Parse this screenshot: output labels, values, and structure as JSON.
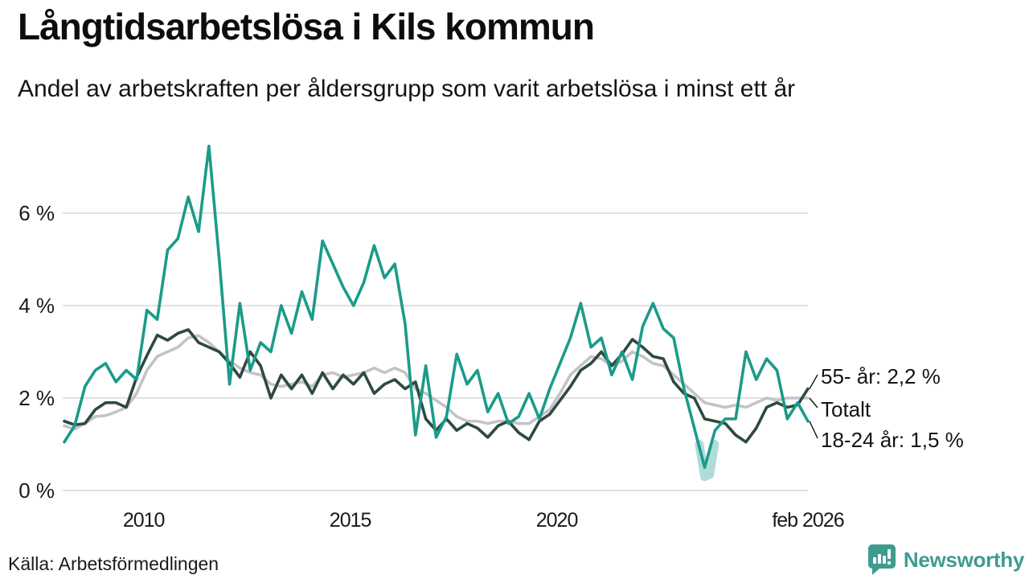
{
  "header": {
    "title": "Långtidsarbetslösa i Kils kommun",
    "subtitle": "Andel av arbetskraften per åldersgrupp som varit arbetslösa i minst ett år"
  },
  "footer": {
    "source": "Källa: Arbetsförmedlingen",
    "brand": "Newsworthy"
  },
  "colors": {
    "youth_line": "#1b9b8a",
    "senior_line": "#2d4a3f",
    "total_line": "#c4c2cb",
    "gridline": "#e2e2e2",
    "text": "#1a1a1a",
    "brand_teal": "#3f9b8f",
    "band": "rgba(27,155,138,0.35)"
  },
  "chart_data": {
    "type": "line",
    "title": "Långtidsarbetslösa i Kils kommun",
    "subtitle": "Andel av arbetskraften per åldersgrupp som varit arbetslösa i minst ett år",
    "unit": "%",
    "x_range": [
      2008.08,
      2026.08
    ],
    "x_step": 0.25,
    "ylim": [
      0,
      7.6
    ],
    "grid": true,
    "x_ticks": [
      {
        "t": 2010,
        "label": "2010"
      },
      {
        "t": 2015,
        "label": "2015"
      },
      {
        "t": 2020,
        "label": "2020"
      },
      {
        "t": 2026.08,
        "label": "feb 2026"
      }
    ],
    "y_ticks": [
      {
        "v": 0,
        "label": "0 %"
      },
      {
        "v": 2,
        "label": "2 %"
      },
      {
        "v": 4,
        "label": "4 %"
      },
      {
        "v": 6,
        "label": "6 %"
      }
    ],
    "series": [
      {
        "name": "Totalt",
        "color": "#c4c2cb",
        "last_value": 2.0,
        "values": [
          1.4,
          1.33,
          1.45,
          1.6,
          1.62,
          1.7,
          1.8,
          2.1,
          2.6,
          2.9,
          3.0,
          3.1,
          3.3,
          3.35,
          3.2,
          3.0,
          2.8,
          2.65,
          2.55,
          2.5,
          2.3,
          2.25,
          2.3,
          2.35,
          2.25,
          2.5,
          2.55,
          2.45,
          2.5,
          2.55,
          2.65,
          2.55,
          2.65,
          2.55,
          2.2,
          2.1,
          1.95,
          1.8,
          1.6,
          1.5,
          1.5,
          1.45,
          1.5,
          1.5,
          1.45,
          1.45,
          1.6,
          1.75,
          2.1,
          2.5,
          2.7,
          2.9,
          2.85,
          2.7,
          2.8,
          3.0,
          2.9,
          2.75,
          2.7,
          2.5,
          2.3,
          2.1,
          1.9,
          1.85,
          1.8,
          1.85,
          1.8,
          1.9,
          2.0,
          1.95,
          2.0,
          2.0,
          2.0
        ]
      },
      {
        "name": "55- år",
        "color": "#2d4a3f",
        "last_value": 2.2,
        "values": [
          1.5,
          1.42,
          1.45,
          1.75,
          1.9,
          1.9,
          1.8,
          2.45,
          2.92,
          3.36,
          3.25,
          3.4,
          3.48,
          3.2,
          3.1,
          3.0,
          2.75,
          2.45,
          3.0,
          2.7,
          2.0,
          2.5,
          2.2,
          2.5,
          2.1,
          2.55,
          2.2,
          2.5,
          2.3,
          2.55,
          2.1,
          2.3,
          2.4,
          2.2,
          2.35,
          1.55,
          1.3,
          1.55,
          1.3,
          1.45,
          1.35,
          1.15,
          1.4,
          1.5,
          1.25,
          1.1,
          1.5,
          1.65,
          1.95,
          2.25,
          2.6,
          2.75,
          3.0,
          2.7,
          2.95,
          3.27,
          3.1,
          2.9,
          2.85,
          2.35,
          2.1,
          2.0,
          1.55,
          1.5,
          1.45,
          1.2,
          1.05,
          1.35,
          1.8,
          1.9,
          1.8,
          1.85,
          2.2
        ]
      },
      {
        "name": "18-24 år",
        "color": "#1b9b8a",
        "last_value": 1.5,
        "values": [
          1.05,
          1.4,
          2.25,
          2.6,
          2.75,
          2.35,
          2.6,
          2.4,
          3.9,
          3.7,
          5.2,
          5.45,
          6.35,
          5.6,
          7.45,
          5.0,
          2.3,
          4.05,
          2.6,
          3.2,
          3.0,
          4.0,
          3.4,
          4.3,
          3.7,
          5.4,
          4.9,
          4.4,
          4.0,
          4.5,
          5.3,
          4.6,
          4.9,
          3.6,
          1.2,
          2.7,
          1.15,
          1.6,
          2.95,
          2.3,
          2.6,
          1.7,
          2.1,
          1.45,
          1.6,
          2.1,
          1.55,
          2.2,
          2.75,
          3.3,
          4.05,
          3.1,
          3.3,
          2.5,
          3.0,
          2.4,
          3.55,
          4.05,
          3.5,
          3.3,
          2.2,
          1.35,
          0.5,
          1.3,
          1.55,
          1.55,
          3.0,
          2.4,
          2.85,
          2.6,
          1.55,
          1.9,
          1.5
        ]
      }
    ],
    "band": {
      "series": "18-24 år",
      "color": "rgba(27,155,138,0.35)",
      "t": [
        2023.45,
        2023.58,
        2023.7,
        2023.82
      ],
      "v": [
        1.0,
        0.3,
        0.35,
        1.0
      ]
    },
    "annotations": [
      {
        "label": "55- år: 2,2 %",
        "series": "55- år"
      },
      {
        "label": "Totalt",
        "series": "Totalt"
      },
      {
        "label": "18-24 år: 1,5 %",
        "series": "18-24 år"
      }
    ],
    "legend_position": "right-of-line-ends"
  }
}
